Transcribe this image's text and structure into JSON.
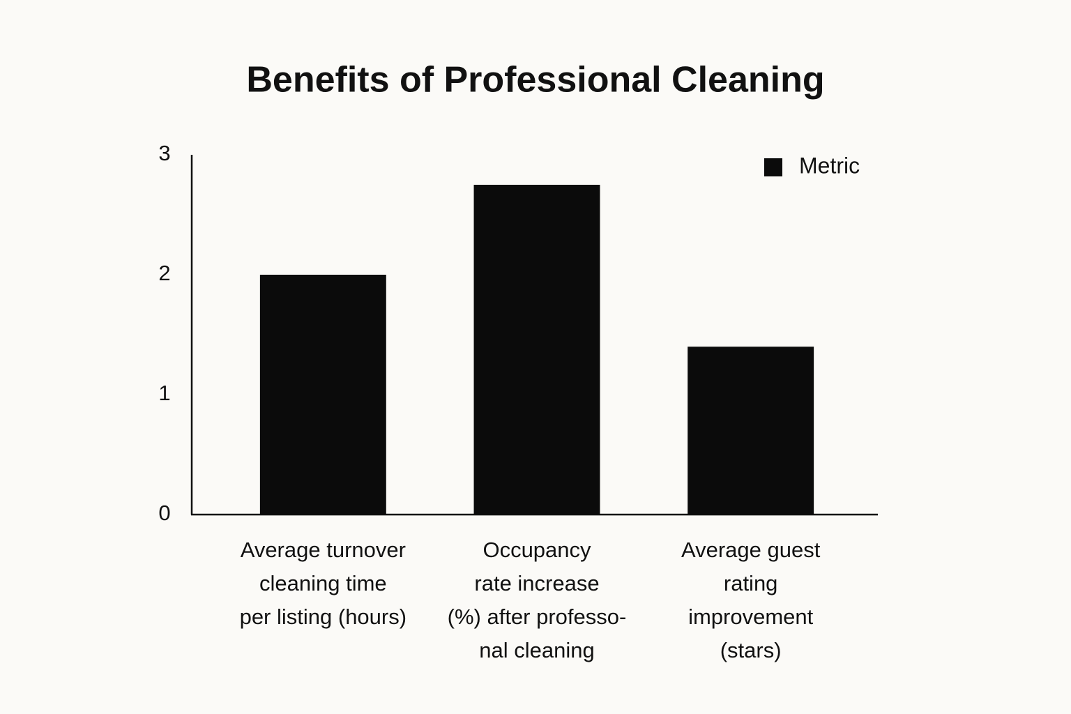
{
  "chart_data": {
    "type": "bar",
    "title": "Benefits of Professional Cleaning",
    "categories": [
      "Average turnover\ncleaning time\nper listing (hours)",
      "Occupancy\nrate increase\n(%) after professo-\nnal cleaning",
      "Average guest\nrating\nimprovement\n(stars)"
    ],
    "series": [
      {
        "name": "Metric",
        "color": "#0b0b0b",
        "values": [
          2.0,
          2.75,
          1.4
        ]
      }
    ],
    "ylim": [
      0,
      3
    ],
    "yticks": [
      0,
      1,
      2,
      3
    ],
    "grid": false,
    "legend": "upper right"
  }
}
